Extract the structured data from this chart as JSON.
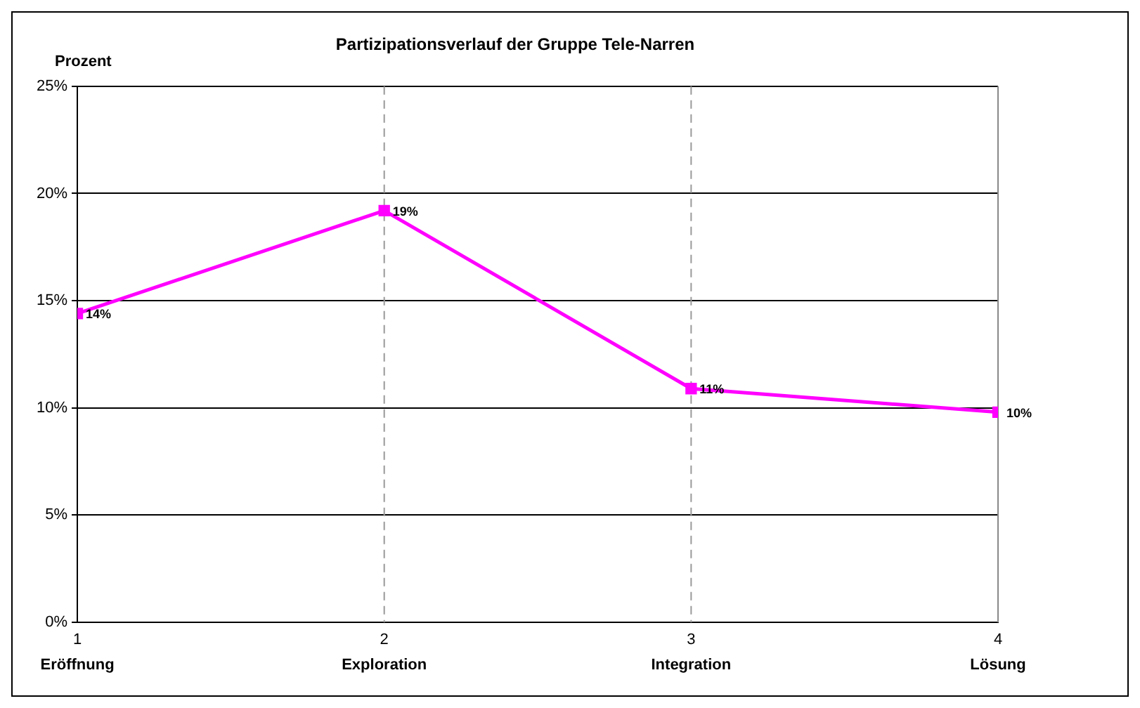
{
  "chart_data": {
    "type": "line",
    "title": "Partizipationsverlauf der Gruppe Tele-Narren",
    "ylabel": "Prozent",
    "x": [
      1,
      2,
      3,
      4
    ],
    "series": [
      {
        "color": "#ff00ff",
        "values": [
          14.4,
          19.2,
          10.9,
          9.8
        ],
        "value_labels": [
          "14%",
          "19%",
          "11%",
          "10%"
        ]
      }
    ],
    "xlim": [
      1,
      4
    ],
    "xticks": [
      {
        "value": 1,
        "label": "1\nEröffnung"
      },
      {
        "value": 2,
        "label": "2\nExploration"
      },
      {
        "value": 3,
        "label": "3\nIntegration"
      },
      {
        "value": 4,
        "label": "4\nLösung"
      }
    ],
    "ylim": [
      0,
      25
    ],
    "yticks": [
      {
        "value": 0,
        "label": "0%"
      },
      {
        "value": 5,
        "label": "5%"
      },
      {
        "value": 10,
        "label": "10%"
      },
      {
        "value": 15,
        "label": "15%"
      },
      {
        "value": 20,
        "label": "20%"
      },
      {
        "value": 25,
        "label": "25%"
      }
    ],
    "ref_lines": [
      {
        "axis": "x",
        "value": 2,
        "color": "#999999",
        "line_style": "dashed"
      },
      {
        "axis": "x",
        "value": 3,
        "color": "#999999",
        "line_style": "dashed"
      }
    ],
    "grid": "y",
    "legend": false,
    "marker": "square",
    "line_style": "solid"
  }
}
